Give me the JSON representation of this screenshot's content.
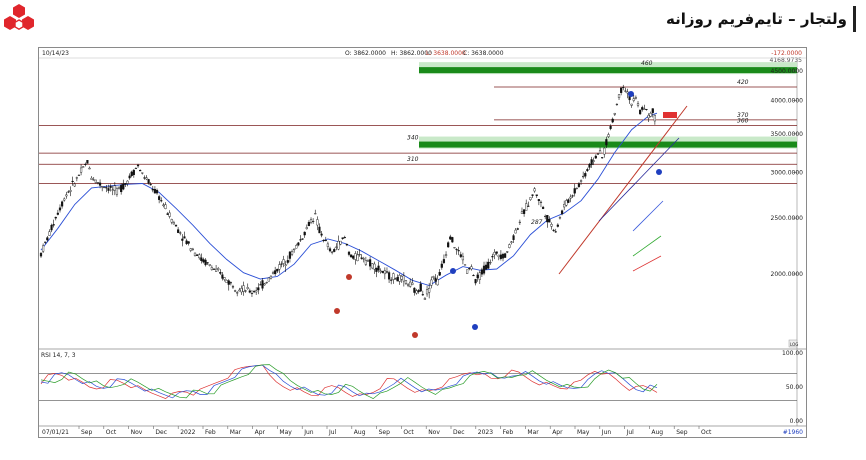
{
  "header": {
    "title": "ولتجار – تایم‌فریم روزانه",
    "logo_icon": "hexagon-cluster-logo",
    "logo_color": "#e0262c"
  },
  "chart_data": {
    "type": "candlestick",
    "date_label": "10/14/23",
    "ohlc": {
      "open": "O: 3862.0000",
      "high": "H: 3862.0000",
      "low": "L: 3638.0000",
      "close": "C: 3638.0000"
    },
    "change": "-172.0000",
    "last_price": "4168.9735",
    "ylim": [
      1500,
      4700
    ],
    "y_ticks": [
      "4500.0000",
      "4000.0000",
      "3500.0000",
      "3000.0000",
      "2500.0000",
      "2000.0000"
    ],
    "x_ticks": [
      "Sep",
      "Oct",
      "Nov",
      "Dec",
      "2022",
      "Feb",
      "Mar",
      "Apr",
      "May",
      "Jun",
      "Jul",
      "Aug",
      "Sep",
      "Oct",
      "Nov",
      "Dec",
      "2023",
      "Feb",
      "Mar",
      "Apr",
      "May",
      "Jun",
      "Jul",
      "Aug",
      "Sep",
      "Oct"
    ],
    "x_start_label": "07/01/21",
    "corner_label": "#1960",
    "scale_label": "LOG",
    "price_path": [
      [
        0,
        2170
      ],
      [
        2,
        2350
      ],
      [
        4,
        2560
      ],
      [
        6,
        2750
      ],
      [
        8,
        2880
      ],
      [
        10,
        3050
      ],
      [
        11,
        3130
      ],
      [
        12,
        2950
      ],
      [
        14,
        2860
      ],
      [
        16,
        2820
      ],
      [
        18,
        2780
      ],
      [
        20,
        2870
      ],
      [
        22,
        3020
      ],
      [
        23,
        3080
      ],
      [
        24,
        2980
      ],
      [
        26,
        2850
      ],
      [
        28,
        2720
      ],
      [
        30,
        2560
      ],
      [
        32,
        2420
      ],
      [
        34,
        2300
      ],
      [
        36,
        2210
      ],
      [
        38,
        2120
      ],
      [
        40,
        2070
      ],
      [
        42,
        2010
      ],
      [
        44,
        1950
      ],
      [
        46,
        1900
      ],
      [
        48,
        1880
      ],
      [
        50,
        1860
      ],
      [
        52,
        1900
      ],
      [
        54,
        1960
      ],
      [
        56,
        2040
      ],
      [
        58,
        2110
      ],
      [
        60,
        2200
      ],
      [
        62,
        2320
      ],
      [
        64,
        2480
      ],
      [
        65,
        2520
      ],
      [
        66,
        2380
      ],
      [
        68,
        2230
      ],
      [
        69,
        2170
      ],
      [
        70,
        2230
      ],
      [
        72,
        2310
      ],
      [
        73,
        2180
      ],
      [
        74,
        2130
      ],
      [
        76,
        2150
      ],
      [
        78,
        2090
      ],
      [
        80,
        2040
      ],
      [
        82,
        1990
      ],
      [
        84,
        1970
      ],
      [
        86,
        1950
      ],
      [
        88,
        1900
      ],
      [
        89,
        1850
      ],
      [
        90,
        1900
      ],
      [
        91,
        1830
      ],
      [
        92,
        1890
      ],
      [
        93,
        1980
      ],
      [
        94,
        1940
      ],
      [
        96,
        2180
      ],
      [
        97,
        2340
      ],
      [
        98,
        2230
      ],
      [
        100,
        2130
      ],
      [
        101,
        2020
      ],
      [
        102,
        2050
      ],
      [
        103,
        1930
      ],
      [
        104,
        1990
      ],
      [
        106,
        2080
      ],
      [
        108,
        2180
      ],
      [
        110,
        2150
      ],
      [
        112,
        2320
      ],
      [
        114,
        2520
      ],
      [
        116,
        2700
      ],
      [
        117,
        2790
      ],
      [
        118,
        2700
      ],
      [
        120,
        2500
      ],
      [
        121,
        2430
      ],
      [
        122,
        2380
      ],
      [
        124,
        2620
      ],
      [
        126,
        2750
      ],
      [
        128,
        2900
      ],
      [
        130,
        3080
      ],
      [
        132,
        3240
      ],
      [
        133,
        3180
      ],
      [
        134,
        3380
      ],
      [
        135,
        3580
      ],
      [
        136,
        3800
      ],
      [
        137,
        4080
      ],
      [
        138,
        4250
      ],
      [
        139,
        4140
      ],
      [
        140,
        3950
      ],
      [
        141,
        4020
      ],
      [
        142,
        3820
      ],
      [
        143,
        3910
      ],
      [
        144,
        3750
      ],
      [
        145,
        3810
      ],
      [
        146,
        3638
      ]
    ],
    "ma_path": [
      [
        0,
        2200
      ],
      [
        4,
        2400
      ],
      [
        8,
        2640
      ],
      [
        12,
        2820
      ],
      [
        16,
        2840
      ],
      [
        20,
        2860
      ],
      [
        24,
        2870
      ],
      [
        28,
        2770
      ],
      [
        32,
        2600
      ],
      [
        36,
        2430
      ],
      [
        40,
        2260
      ],
      [
        44,
        2120
      ],
      [
        48,
        2010
      ],
      [
        52,
        1960
      ],
      [
        56,
        1980
      ],
      [
        60,
        2080
      ],
      [
        64,
        2250
      ],
      [
        68,
        2300
      ],
      [
        72,
        2260
      ],
      [
        76,
        2190
      ],
      [
        80,
        2110
      ],
      [
        84,
        2030
      ],
      [
        88,
        1950
      ],
      [
        92,
        1910
      ],
      [
        96,
        1990
      ],
      [
        100,
        2060
      ],
      [
        104,
        2030
      ],
      [
        108,
        2040
      ],
      [
        112,
        2150
      ],
      [
        116,
        2340
      ],
      [
        120,
        2480
      ],
      [
        124,
        2550
      ],
      [
        128,
        2680
      ],
      [
        132,
        2920
      ],
      [
        136,
        3250
      ],
      [
        140,
        3560
      ],
      [
        144,
        3760
      ],
      [
        146,
        3800
      ]
    ],
    "horizontal_levels": [
      {
        "label": "460",
        "value": 4550,
        "color": "#1a8a1a",
        "band": true
      },
      {
        "label": "420",
        "value": 4220,
        "color": "#7a1f1f",
        "band": false
      },
      {
        "label": "370",
        "value": 3700,
        "color": "#7a1f1f",
        "band": false
      },
      {
        "label": "360",
        "value": 3620,
        "color": "#7a1f1f",
        "band": false
      },
      {
        "label": "340",
        "value": 3380,
        "color": "#1a8a1a",
        "band": true
      },
      {
        "label": "310",
        "value": 3100,
        "color": "#7a1f1f",
        "band": false
      }
    ],
    "wave_label_287": "287",
    "rsi": {
      "label": "RSI 14, 7, 3",
      "ylim": [
        0,
        100
      ],
      "y_ticks": [
        "100.00",
        "50.00",
        "0.00"
      ],
      "levels": [
        70,
        30
      ],
      "values": [
        55,
        62,
        68,
        70,
        66,
        60,
        58,
        52,
        48,
        50,
        56,
        60,
        58,
        54,
        50,
        46,
        42,
        40,
        38,
        36,
        40,
        45,
        42,
        40,
        46,
        52,
        58,
        64,
        70,
        75,
        80,
        83,
        85,
        72,
        60,
        55,
        50,
        48,
        44,
        40,
        38,
        42,
        48,
        52,
        46,
        42,
        38,
        36,
        40,
        46,
        55,
        62,
        58,
        52,
        48,
        44,
        42,
        45,
        50,
        56,
        60,
        66,
        72,
        74,
        70,
        64,
        60,
        66,
        70,
        72,
        68,
        62,
        58,
        56,
        52,
        50,
        48,
        52,
        54,
        62,
        74,
        76,
        70,
        64,
        58,
        50,
        46,
        48,
        52,
        44
      ]
    }
  }
}
